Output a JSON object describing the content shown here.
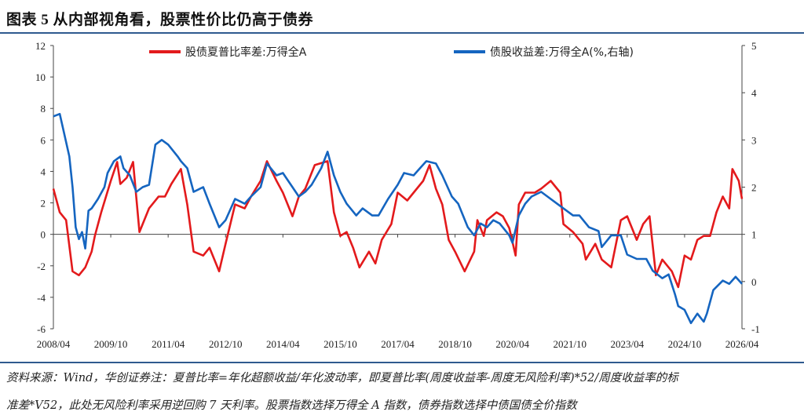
{
  "header": {
    "title": "图表 5  从内部视角看，股票性价比仍高于债券"
  },
  "footnote": {
    "line1": "资料来源：Wind，华创证券注：夏普比率=年化超额收益/年化波动率，即夏普比率(周度收益率-周度无风险利率)*52/周度收益率的标",
    "line2": "准差*V52，此处无风险利率采用逆回购 7 天利率。股票指数选择万得全 A 指数，债券指数选择中债国债全价指数"
  },
  "chart_data": {
    "type": "line",
    "title": "",
    "xlabel": "",
    "ylabel": "",
    "x_ticks": [
      "2008/04",
      "2009/10",
      "2011/04",
      "2012/10",
      "2014/04",
      "2015/10",
      "2017/04",
      "2018/10",
      "2020/04",
      "2021/10",
      "2023/04",
      "2024/10",
      "2026/04"
    ],
    "y_left": {
      "range": [
        -6,
        12
      ],
      "ticks": [
        "12",
        "10",
        "8",
        "6",
        "4",
        "2",
        "0",
        "-2",
        "-4",
        "-6"
      ]
    },
    "y_right": {
      "range": [
        -1,
        5
      ],
      "ticks": [
        "5",
        "4",
        "3",
        "2",
        "1",
        "0",
        "-1"
      ]
    },
    "grid": false,
    "legend_position": "top",
    "series": [
      {
        "name": "股债夏普比率差:万得全A",
        "axis": "left",
        "color": "#e31a1c",
        "points": [
          [
            "2008-04",
            2.9
          ],
          [
            "2008-06",
            1.4
          ],
          [
            "2008-08",
            0.9
          ],
          [
            "2008-10",
            -2.35
          ],
          [
            "2008-12",
            -2.6
          ],
          [
            "2009-02",
            -2.1
          ],
          [
            "2009-04",
            -1.1
          ],
          [
            "2009-05",
            -0.1
          ],
          [
            "2009-07",
            1.4
          ],
          [
            "2009-10",
            3.4
          ],
          [
            "2009-12",
            4.6
          ],
          [
            "2010-01",
            3.2
          ],
          [
            "2010-03",
            3.6
          ],
          [
            "2010-05",
            4.6
          ],
          [
            "2010-07",
            0.15
          ],
          [
            "2010-10",
            1.65
          ],
          [
            "2011-01",
            2.4
          ],
          [
            "2011-03",
            2.4
          ],
          [
            "2011-05",
            3.2
          ],
          [
            "2011-08",
            4.15
          ],
          [
            "2011-10",
            1.9
          ],
          [
            "2011-12",
            -1.1
          ],
          [
            "2012-03",
            -1.35
          ],
          [
            "2012-05",
            -0.85
          ],
          [
            "2012-08",
            -2.35
          ],
          [
            "2012-10",
            -0.6
          ],
          [
            "2013-01",
            1.9
          ],
          [
            "2013-04",
            1.65
          ],
          [
            "2013-06",
            2.4
          ],
          [
            "2013-09",
            3.4
          ],
          [
            "2013-11",
            4.65
          ],
          [
            "2014-02",
            3.4
          ],
          [
            "2014-04",
            2.65
          ],
          [
            "2014-07",
            1.15
          ],
          [
            "2014-09",
            2.4
          ],
          [
            "2014-11",
            2.9
          ],
          [
            "2015-02",
            4.4
          ],
          [
            "2015-06",
            4.65
          ],
          [
            "2015-08",
            1.4
          ],
          [
            "2015-10",
            -0.1
          ],
          [
            "2015-12",
            0.15
          ],
          [
            "2016-02",
            -0.85
          ],
          [
            "2016-04",
            -2.1
          ],
          [
            "2016-07",
            -1.1
          ],
          [
            "2016-09",
            -1.85
          ],
          [
            "2016-11",
            -0.35
          ],
          [
            "2017-02",
            0.65
          ],
          [
            "2017-04",
            2.65
          ],
          [
            "2017-07",
            2.15
          ],
          [
            "2017-09",
            2.65
          ],
          [
            "2017-12",
            3.4
          ],
          [
            "2018-02",
            4.4
          ],
          [
            "2018-04",
            2.9
          ],
          [
            "2018-06",
            1.9
          ],
          [
            "2018-08",
            -0.35
          ],
          [
            "2018-10",
            -1.1
          ],
          [
            "2019-01",
            -2.35
          ],
          [
            "2019-04",
            -1.1
          ],
          [
            "2019-05",
            0.9
          ],
          [
            "2019-07",
            -0.1
          ],
          [
            "2019-08",
            0.9
          ],
          [
            "2019-11",
            1.4
          ],
          [
            "2020-01",
            1.15
          ],
          [
            "2020-03",
            0.4
          ],
          [
            "2020-05",
            -1.35
          ],
          [
            "2020-06",
            1.9
          ],
          [
            "2020-08",
            2.65
          ],
          [
            "2020-11",
            2.65
          ],
          [
            "2021-01",
            2.9
          ],
          [
            "2021-04",
            3.4
          ],
          [
            "2021-07",
            2.65
          ],
          [
            "2021-08",
            0.65
          ],
          [
            "2021-11",
            0.15
          ],
          [
            "2022-02",
            -0.6
          ],
          [
            "2022-03",
            -1.6
          ],
          [
            "2022-06",
            -0.6
          ],
          [
            "2022-08",
            -1.6
          ],
          [
            "2022-11",
            -2.1
          ],
          [
            "2023-02",
            0.9
          ],
          [
            "2023-04",
            1.15
          ],
          [
            "2023-07",
            -0.35
          ],
          [
            "2023-09",
            0.65
          ],
          [
            "2023-11",
            1.15
          ],
          [
            "2024-01",
            -2.6
          ],
          [
            "2024-03",
            -1.6
          ],
          [
            "2024-06",
            -2.35
          ],
          [
            "2024-08",
            -3.35
          ],
          [
            "2024-10",
            -1.35
          ],
          [
            "2024-12",
            -1.6
          ],
          [
            "2025-02",
            -0.35
          ],
          [
            "2025-04",
            -0.1
          ],
          [
            "2025-06",
            -0.1
          ],
          [
            "2025-08",
            1.4
          ],
          [
            "2025-10",
            2.4
          ],
          [
            "2025-12",
            1.65
          ],
          [
            "2026-01",
            4.15
          ],
          [
            "2026-03",
            3.4
          ],
          [
            "2026-04",
            2.25
          ]
        ]
      },
      {
        "name": "债股收益差:万得全A(%,右轴)",
        "axis": "right",
        "color": "#1565c0",
        "points": [
          [
            "2008-04",
            3.5
          ],
          [
            "2008-06",
            3.55
          ],
          [
            "2008-07",
            3.25
          ],
          [
            "2008-09",
            2.65
          ],
          [
            "2008-10",
            2.0
          ],
          [
            "2008-11",
            1.15
          ],
          [
            "2008-12",
            0.9
          ],
          [
            "2009-01",
            1.05
          ],
          [
            "2009-02",
            0.7
          ],
          [
            "2009-03",
            1.5
          ],
          [
            "2009-04",
            1.55
          ],
          [
            "2009-06",
            1.75
          ],
          [
            "2009-08",
            2.0
          ],
          [
            "2009-09",
            2.3
          ],
          [
            "2009-11",
            2.55
          ],
          [
            "2010-01",
            2.65
          ],
          [
            "2010-02",
            2.4
          ],
          [
            "2010-04",
            2.25
          ],
          [
            "2010-06",
            1.9
          ],
          [
            "2010-08",
            2.0
          ],
          [
            "2010-10",
            2.05
          ],
          [
            "2010-12",
            2.9
          ],
          [
            "2011-02",
            3.0
          ],
          [
            "2011-04",
            2.9
          ],
          [
            "2011-07",
            2.65
          ],
          [
            "2011-08",
            2.55
          ],
          [
            "2011-10",
            2.4
          ],
          [
            "2011-12",
            1.9
          ],
          [
            "2012-03",
            2.0
          ],
          [
            "2012-05",
            1.65
          ],
          [
            "2012-08",
            1.15
          ],
          [
            "2012-10",
            1.3
          ],
          [
            "2013-01",
            1.75
          ],
          [
            "2013-04",
            1.65
          ],
          [
            "2013-06",
            1.8
          ],
          [
            "2013-09",
            2.0
          ],
          [
            "2013-11",
            2.5
          ],
          [
            "2014-02",
            2.25
          ],
          [
            "2014-04",
            2.3
          ],
          [
            "2014-07",
            2.0
          ],
          [
            "2014-09",
            1.8
          ],
          [
            "2014-11",
            1.9
          ],
          [
            "2015-01",
            2.05
          ],
          [
            "2015-04",
            2.4
          ],
          [
            "2015-06",
            2.75
          ],
          [
            "2015-08",
            2.25
          ],
          [
            "2015-10",
            1.9
          ],
          [
            "2015-12",
            1.65
          ],
          [
            "2016-03",
            1.4
          ],
          [
            "2016-05",
            1.55
          ],
          [
            "2016-08",
            1.4
          ],
          [
            "2016-10",
            1.4
          ],
          [
            "2017-01",
            1.75
          ],
          [
            "2017-04",
            2.05
          ],
          [
            "2017-06",
            2.3
          ],
          [
            "2017-09",
            2.25
          ],
          [
            "2017-11",
            2.4
          ],
          [
            "2018-01",
            2.55
          ],
          [
            "2018-04",
            2.5
          ],
          [
            "2018-06",
            2.25
          ],
          [
            "2018-09",
            1.8
          ],
          [
            "2018-11",
            1.65
          ],
          [
            "2019-02",
            1.15
          ],
          [
            "2019-04",
            0.98
          ],
          [
            "2019-06",
            1.23
          ],
          [
            "2019-08",
            1.15
          ],
          [
            "2019-10",
            1.3
          ],
          [
            "2019-12",
            1.23
          ],
          [
            "2020-03",
            0.98
          ],
          [
            "2020-04",
            0.82
          ],
          [
            "2020-06",
            1.4
          ],
          [
            "2020-08",
            1.65
          ],
          [
            "2020-10",
            1.8
          ],
          [
            "2021-01",
            1.9
          ],
          [
            "2021-03",
            1.8
          ],
          [
            "2021-06",
            1.65
          ],
          [
            "2021-08",
            1.55
          ],
          [
            "2021-11",
            1.4
          ],
          [
            "2022-01",
            1.4
          ],
          [
            "2022-04",
            1.15
          ],
          [
            "2022-07",
            1.07
          ],
          [
            "2022-08",
            0.73
          ],
          [
            "2022-11",
            0.98
          ],
          [
            "2023-02",
            0.98
          ],
          [
            "2023-04",
            0.57
          ],
          [
            "2023-07",
            0.48
          ],
          [
            "2023-10",
            0.48
          ],
          [
            "2023-12",
            0.23
          ],
          [
            "2024-03",
            0.07
          ],
          [
            "2024-05",
            0.15
          ],
          [
            "2024-07",
            -0.27
          ],
          [
            "2024-08",
            -0.52
          ],
          [
            "2024-10",
            -0.6
          ],
          [
            "2024-12",
            -0.88
          ],
          [
            "2025-02",
            -0.68
          ],
          [
            "2025-04",
            -0.85
          ],
          [
            "2025-05",
            -0.68
          ],
          [
            "2025-07",
            -0.18
          ],
          [
            "2025-10",
            0.02
          ],
          [
            "2025-12",
            -0.05
          ],
          [
            "2026-02",
            0.1
          ],
          [
            "2026-04",
            -0.05
          ]
        ]
      }
    ]
  }
}
